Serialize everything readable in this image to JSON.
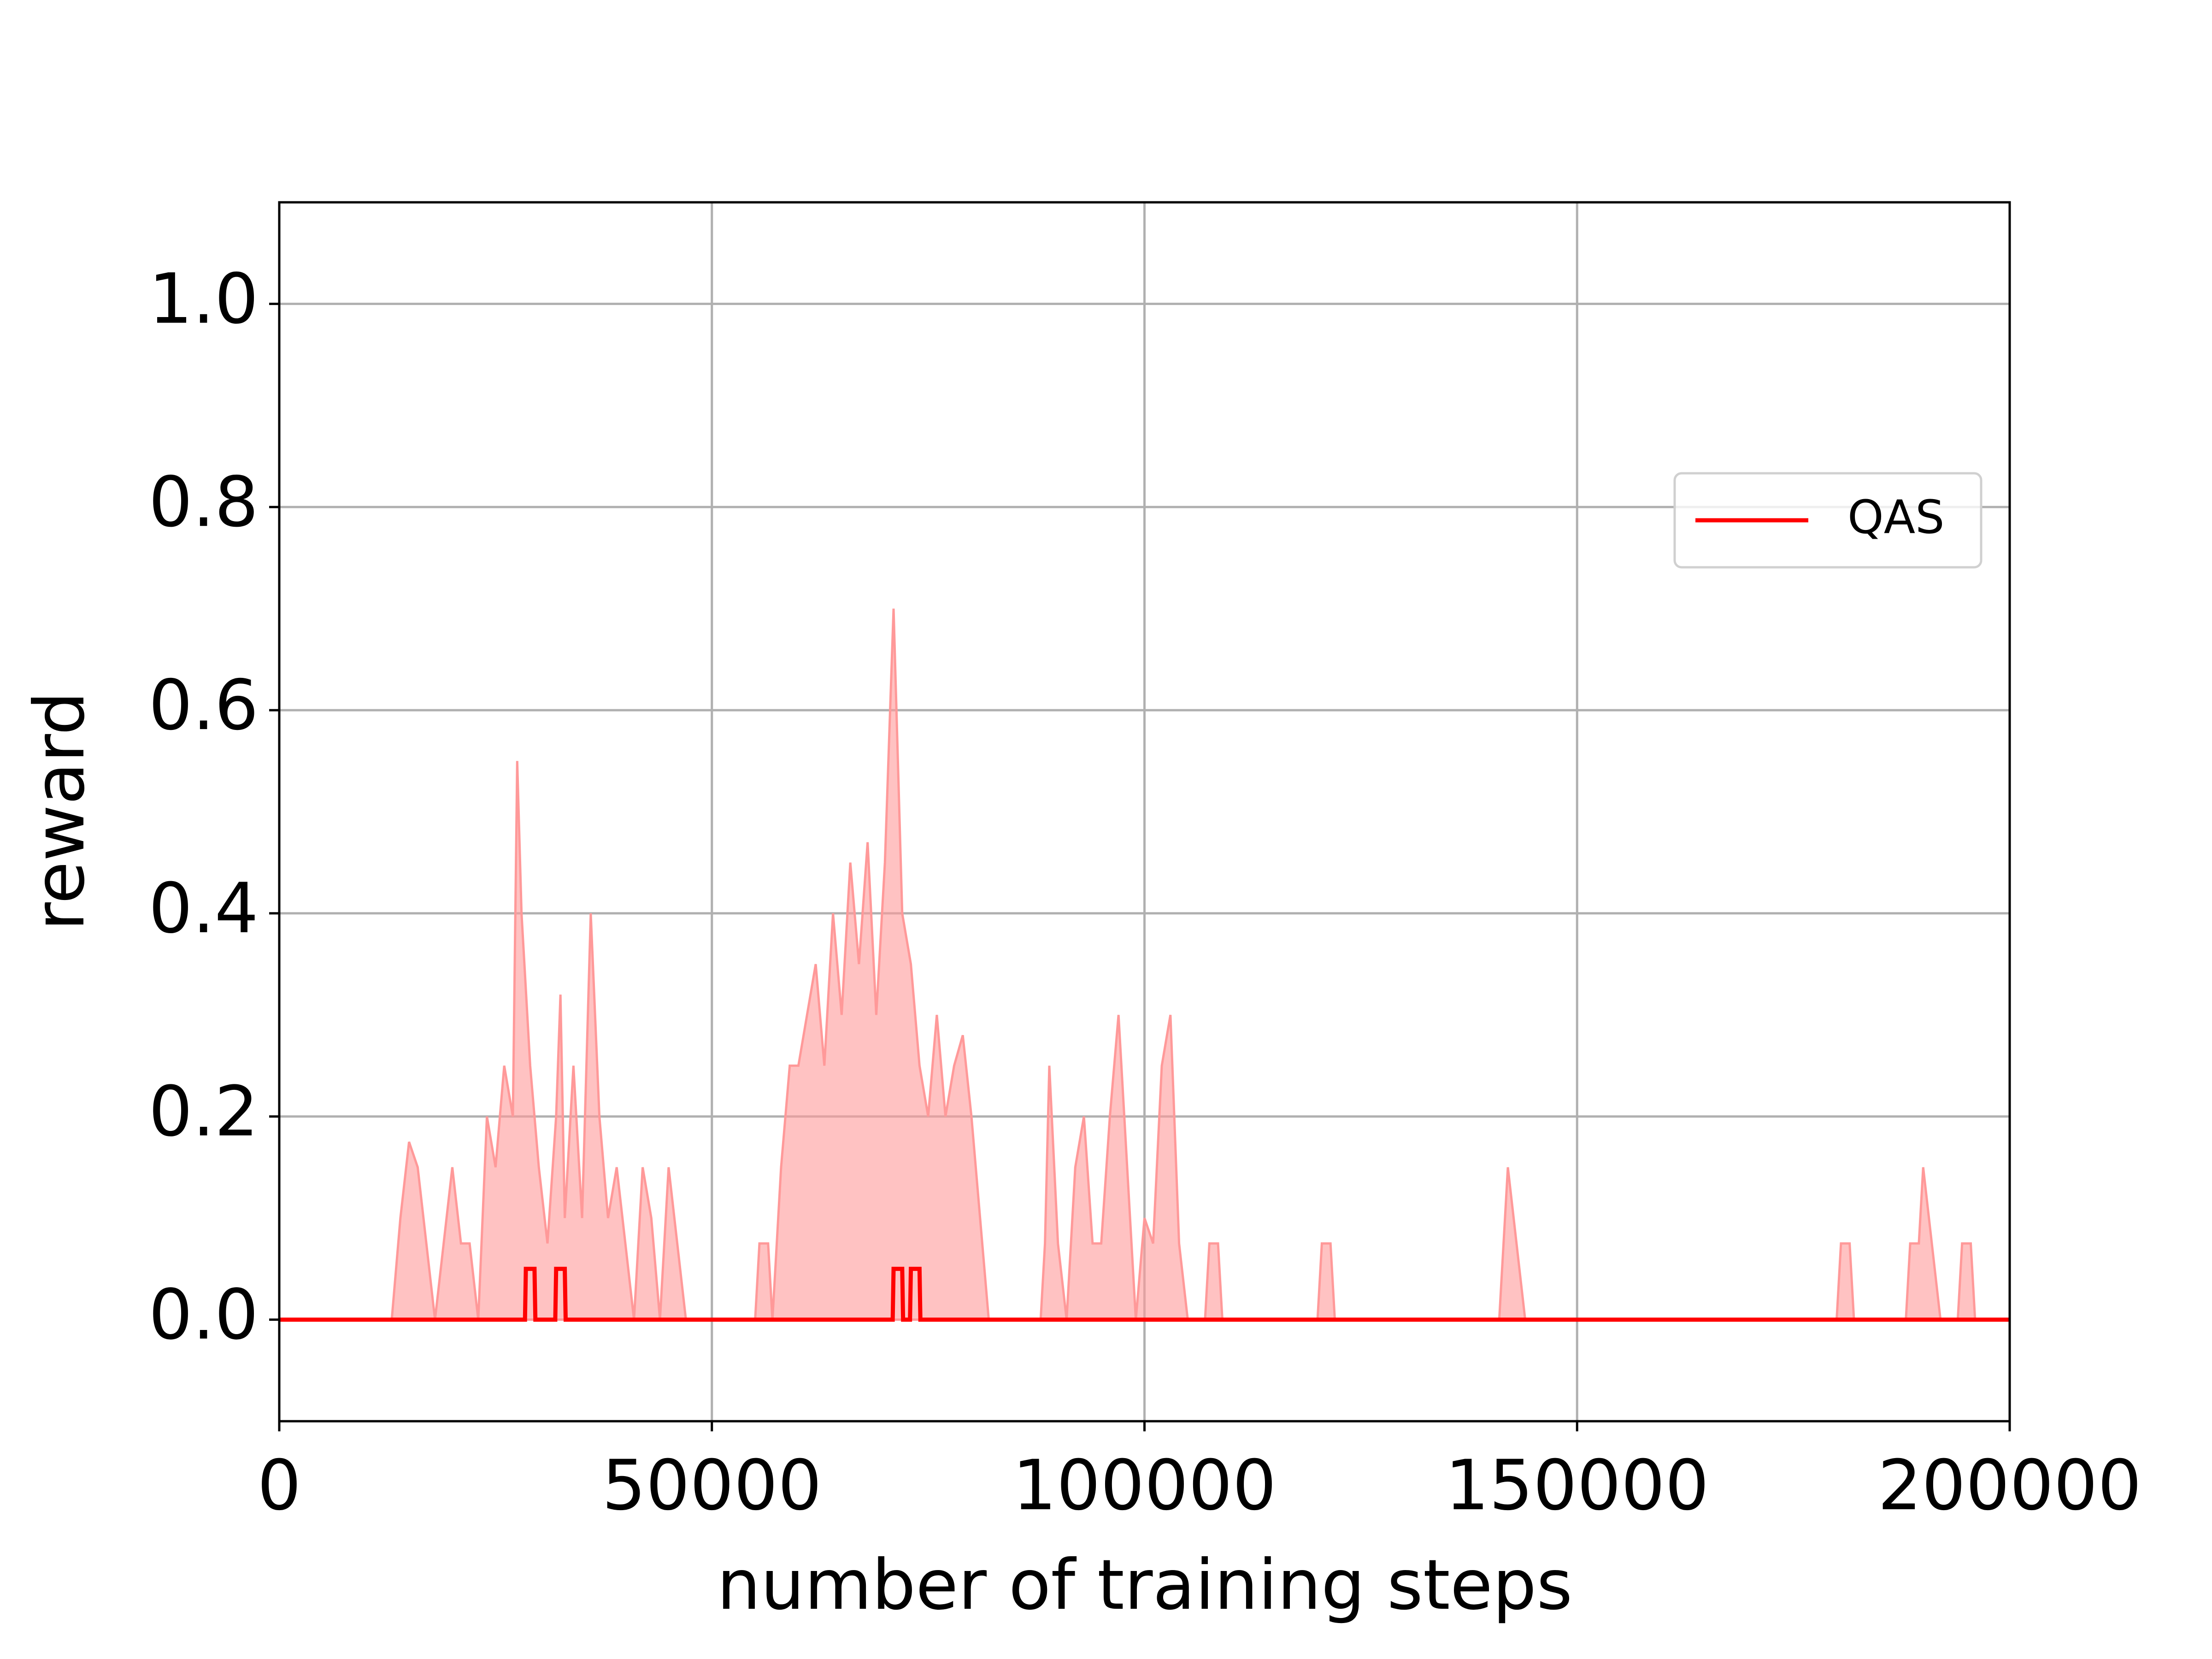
{
  "chart_data": {
    "type": "line",
    "xlabel": "number of training steps",
    "ylabel": "reward",
    "xlim": [
      0,
      200000
    ],
    "ylim": [
      -0.1,
      1.1
    ],
    "xticks": [
      0,
      50000,
      100000,
      150000,
      200000
    ],
    "yticks": [
      {
        "value": 0,
        "label": "0.0"
      },
      {
        "value": 0.2,
        "label": "0.2"
      },
      {
        "value": 0.4,
        "label": "0.4"
      },
      {
        "value": 0.6,
        "label": "0.6"
      },
      {
        "value": 0.8,
        "label": "0.8"
      },
      {
        "value": 1.0,
        "label": "1.0"
      }
    ],
    "grid": true,
    "legend": "right",
    "series": [
      {
        "name": "QAS",
        "color": "#ff0000",
        "x": [
          0,
          28400,
          28500,
          29500,
          29600,
          31900,
          32000,
          33000,
          33100,
          70900,
          71000,
          72000,
          72100,
          72900,
          73000,
          74000,
          74100,
          200000
        ],
        "values": [
          0,
          0,
          0.05,
          0.05,
          0,
          0,
          0.05,
          0.05,
          0,
          0,
          0.05,
          0.05,
          0,
          0,
          0.05,
          0.05,
          0,
          0
        ]
      }
    ],
    "band": {
      "color": "#ff9999",
      "x": [
        0,
        13000,
        14000,
        15000,
        16000,
        17000,
        18000,
        19000,
        20000,
        21000,
        22000,
        23000,
        24000,
        25000,
        26000,
        27000,
        27500,
        28000,
        29000,
        30000,
        31000,
        32000,
        32500,
        33000,
        34000,
        35000,
        36000,
        37000,
        38000,
        39000,
        40000,
        41000,
        42000,
        43000,
        44000,
        45000,
        46000,
        47000,
        55000,
        55500,
        56500,
        57000,
        58000,
        59000,
        60000,
        61000,
        62000,
        63000,
        64000,
        65000,
        66000,
        67000,
        68000,
        69000,
        70000,
        71000,
        72000,
        73000,
        74000,
        75000,
        76000,
        77000,
        78000,
        79000,
        80000,
        81000,
        82000,
        88000,
        88500,
        89000,
        90000,
        91000,
        92000,
        93000,
        94000,
        95000,
        96000,
        97000,
        98000,
        99000,
        100000,
        101000,
        102000,
        103000,
        104000,
        105000,
        107000,
        107500,
        108500,
        109000,
        120000,
        120500,
        121500,
        122000,
        141000,
        141500,
        142000,
        143000,
        144000,
        180000,
        180500,
        181500,
        182000,
        188000,
        188500,
        189500,
        190000,
        191000,
        192000,
        194000,
        194500,
        195500,
        196000,
        200000
      ],
      "values": [
        0,
        0,
        0.1,
        0.175,
        0.15,
        0.075,
        0,
        0.075,
        0.15,
        0.075,
        0.075,
        0,
        0.2,
        0.15,
        0.25,
        0.2,
        0.55,
        0.4,
        0.25,
        0.15,
        0.075,
        0.2,
        0.32,
        0.1,
        0.25,
        0.1,
        0.4,
        0.2,
        0.1,
        0.15,
        0.075,
        0,
        0.15,
        0.1,
        0,
        0.15,
        0.075,
        0,
        0,
        0.075,
        0.075,
        0,
        0.15,
        0.25,
        0.25,
        0.3,
        0.35,
        0.25,
        0.4,
        0.3,
        0.45,
        0.35,
        0.47,
        0.3,
        0.45,
        0.7,
        0.4,
        0.35,
        0.25,
        0.2,
        0.3,
        0.2,
        0.25,
        0.28,
        0.2,
        0.1,
        0,
        0,
        0.075,
        0.25,
        0.075,
        0,
        0.15,
        0.2,
        0.075,
        0.075,
        0.2,
        0.3,
        0.15,
        0,
        0.1,
        0.075,
        0.25,
        0.3,
        0.075,
        0,
        0,
        0.075,
        0.075,
        0,
        0,
        0.075,
        0.075,
        0,
        0,
        0.075,
        0.15,
        0.075,
        0,
        0,
        0.075,
        0.075,
        0,
        0,
        0.075,
        0.075,
        0.15,
        0.075,
        0,
        0,
        0.075,
        0.075,
        0,
        0
      ]
    }
  }
}
